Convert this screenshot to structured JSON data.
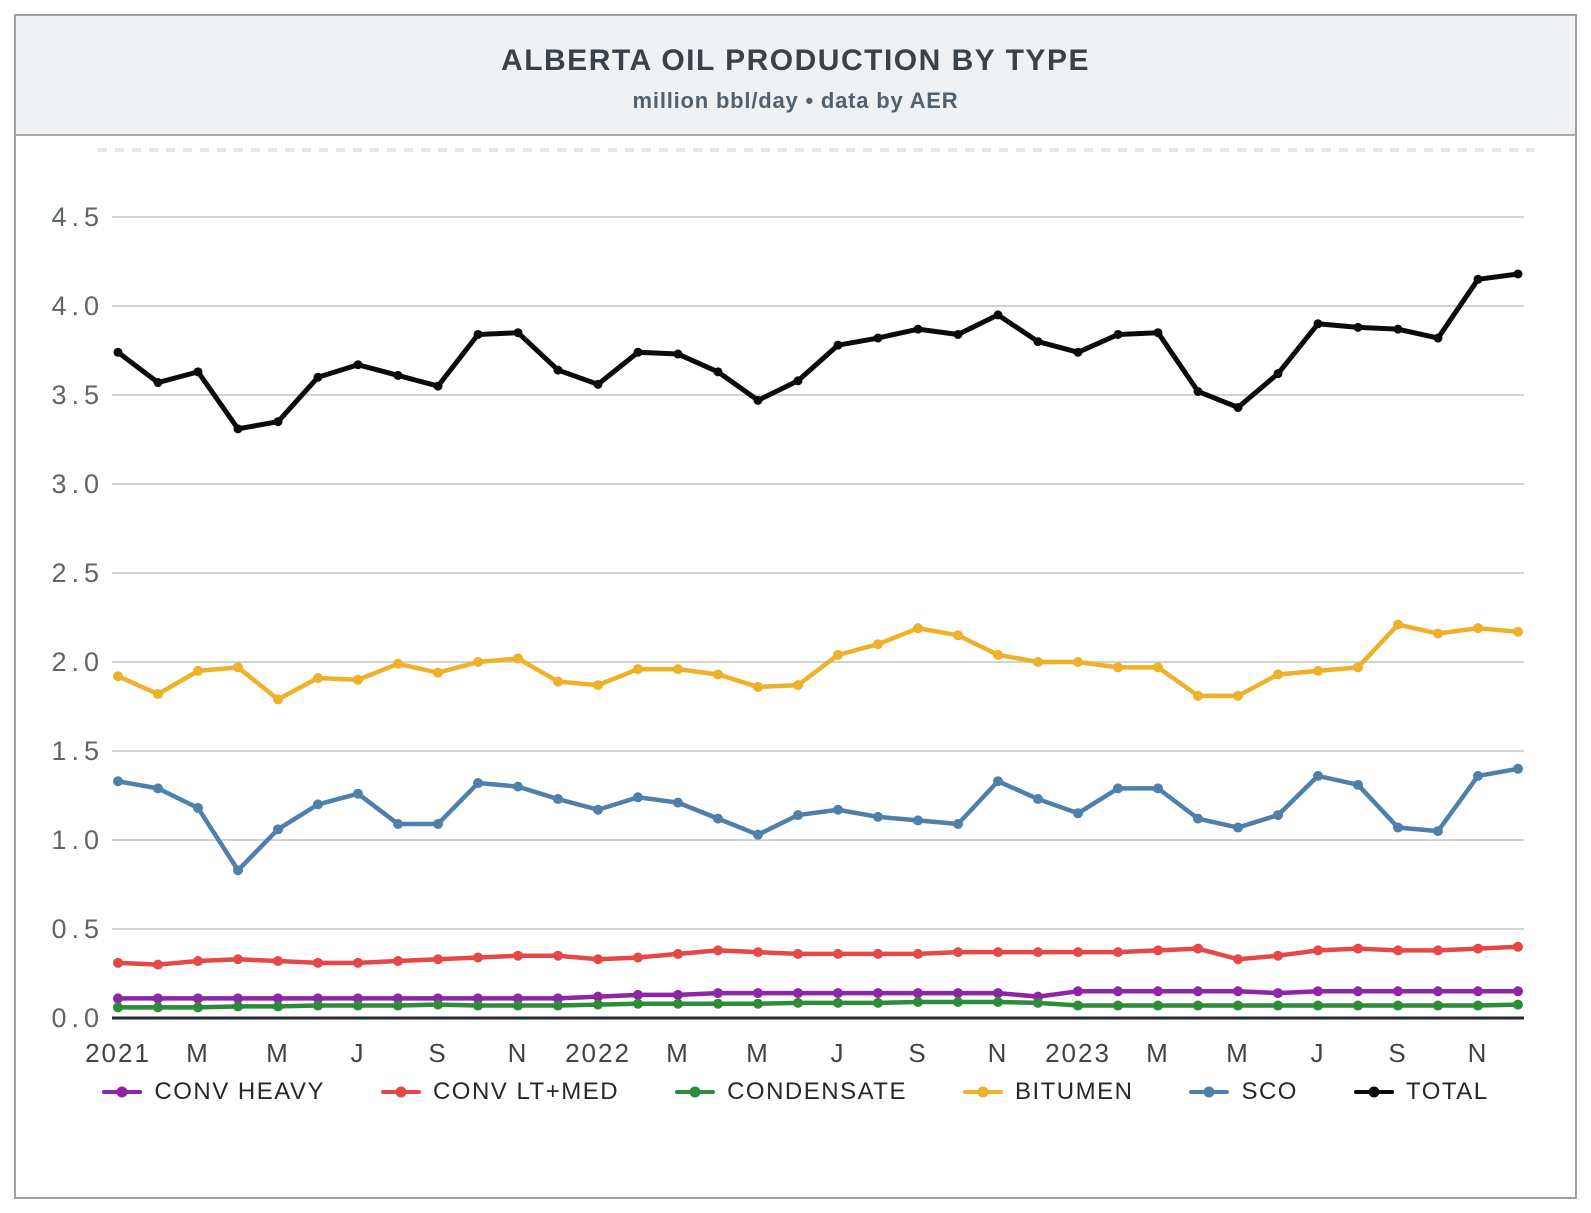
{
  "header": {
    "title": "ALBERTA OIL PRODUCTION BY TYPE",
    "subtitle": "million bbl/day • data by AER"
  },
  "theme": {
    "header_bg": "#eff1f2",
    "title_color": "#3a4249",
    "subtitle_color": "#53616d",
    "border_color": "#9ca2a7",
    "grid_color": "#c9cdcb",
    "top_dash_color": "#e4e8e6",
    "axis_color": "#24292d",
    "ytick_color": "#5f6569",
    "xtick_color": "#3f4449",
    "legend_text_color": "#26292c"
  },
  "chart_data": {
    "type": "line",
    "title": "ALBERTA OIL PRODUCTION BY TYPE",
    "subtitle": "million bbl/day • data by AER",
    "xlabel": "",
    "ylabel": "million bbl/day",
    "x_points": 36,
    "x_range_note": "monthly, Jan 2021 - Dec 2023, tick label every 2nd month",
    "x_tick_every": 2,
    "x_tick_labels": [
      "2021",
      "M",
      "M",
      "J",
      "S",
      "N",
      "2022",
      "M",
      "M",
      "J",
      "S",
      "N",
      "2023",
      "M",
      "M",
      "J",
      "S",
      "N"
    ],
    "y_ticks": [
      "0.0",
      "0.5",
      "1.0",
      "1.5",
      "2.0",
      "2.5",
      "3.0",
      "3.5",
      "4.0",
      "4.5"
    ],
    "ylim": [
      0,
      4.88
    ],
    "grid": "horizontal",
    "legend_position": "bottom",
    "series": [
      {
        "name": "CONV HEAVY",
        "color": "#8e24a8",
        "marker": "circle",
        "values": [
          0.11,
          0.11,
          0.11,
          0.11,
          0.11,
          0.11,
          0.11,
          0.11,
          0.11,
          0.11,
          0.11,
          0.11,
          0.12,
          0.13,
          0.13,
          0.14,
          0.14,
          0.14,
          0.14,
          0.14,
          0.14,
          0.14,
          0.14,
          0.12,
          0.15,
          0.15,
          0.15,
          0.15,
          0.15,
          0.14,
          0.15,
          0.15,
          0.15,
          0.15,
          0.15,
          0.15
        ]
      },
      {
        "name": "CONV LT+MED",
        "color": "#e64747",
        "marker": "circle",
        "values": [
          0.31,
          0.3,
          0.32,
          0.33,
          0.32,
          0.31,
          0.31,
          0.32,
          0.33,
          0.34,
          0.35,
          0.35,
          0.33,
          0.34,
          0.36,
          0.38,
          0.37,
          0.36,
          0.36,
          0.36,
          0.36,
          0.37,
          0.37,
          0.37,
          0.37,
          0.37,
          0.38,
          0.39,
          0.33,
          0.35,
          0.38,
          0.39,
          0.38,
          0.38,
          0.39,
          0.4
        ]
      },
      {
        "name": "CONDENSATE",
        "color": "#2d8c38",
        "marker": "circle",
        "values": [
          0.06,
          0.06,
          0.06,
          0.065,
          0.065,
          0.07,
          0.07,
          0.07,
          0.075,
          0.07,
          0.07,
          0.07,
          0.075,
          0.08,
          0.08,
          0.08,
          0.08,
          0.085,
          0.085,
          0.085,
          0.09,
          0.09,
          0.09,
          0.085,
          0.07,
          0.07,
          0.07,
          0.07,
          0.07,
          0.07,
          0.07,
          0.07,
          0.07,
          0.07,
          0.07,
          0.075
        ]
      },
      {
        "name": "BITUMEN",
        "color": "#efb02a",
        "marker": "circle",
        "values": [
          1.92,
          1.82,
          1.95,
          1.97,
          1.79,
          1.91,
          1.9,
          1.99,
          1.94,
          2.0,
          2.02,
          1.89,
          1.87,
          1.96,
          1.96,
          1.93,
          1.86,
          1.87,
          2.04,
          2.1,
          2.19,
          2.15,
          2.04,
          2.0,
          2.0,
          1.97,
          1.97,
          1.81,
          1.81,
          1.93,
          1.95,
          1.97,
          2.21,
          2.16,
          2.19,
          2.17
        ]
      },
      {
        "name": "SCO",
        "color": "#4e80ab",
        "marker": "circle",
        "values": [
          1.33,
          1.29,
          1.18,
          0.83,
          1.06,
          1.2,
          1.26,
          1.09,
          1.09,
          1.32,
          1.3,
          1.23,
          1.17,
          1.24,
          1.21,
          1.12,
          1.03,
          1.14,
          1.17,
          1.13,
          1.11,
          1.09,
          1.33,
          1.23,
          1.15,
          1.29,
          1.29,
          1.12,
          1.07,
          1.14,
          1.36,
          1.31,
          1.07,
          1.05,
          1.36,
          1.4
        ]
      },
      {
        "name": "TOTAL",
        "color": "#0b0b0b",
        "marker": "circle",
        "values": [
          3.74,
          3.57,
          3.63,
          3.31,
          3.35,
          3.6,
          3.67,
          3.61,
          3.55,
          3.84,
          3.85,
          3.64,
          3.56,
          3.74,
          3.73,
          3.63,
          3.47,
          3.58,
          3.78,
          3.82,
          3.87,
          3.84,
          3.95,
          3.8,
          3.74,
          3.84,
          3.85,
          3.52,
          3.43,
          3.62,
          3.9,
          3.88,
          3.87,
          3.82,
          4.15,
          4.18
        ]
      }
    ]
  }
}
